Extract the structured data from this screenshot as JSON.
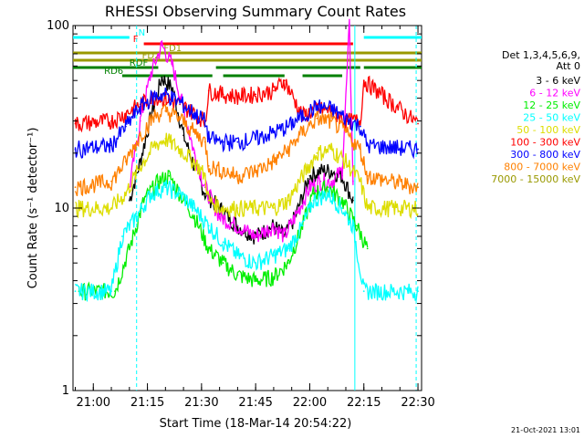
{
  "chart_data": {
    "type": "line",
    "title": "RHESSI Observing Summary Count Rates",
    "xlabel": "Start Time (18-Mar-14 20:54:22)",
    "ylabel": "Count Rate (s⁻¹ detector⁻¹)",
    "y_scale": "log",
    "ylim": [
      1,
      100
    ],
    "xlim": [
      "20:54:22",
      "22:31:00"
    ],
    "x_ticks": [
      "21:00",
      "21:15",
      "21:30",
      "21:45",
      "22:00",
      "22:15",
      "22:30"
    ],
    "y_ticks": [
      "1",
      "10",
      "100"
    ],
    "grid": false,
    "legend_position": "right",
    "legend_header": [
      "Det 1,3,4,5,6,9,",
      "Att 0"
    ],
    "footer_date": "21-Oct-2021 13:01",
    "colors": {
      "3 - 6 keV": "#000000",
      "6 - 12 keV": "#ff00ff",
      "12 - 25 keV": "#00ee00",
      "25 - 50 keV": "#00ffff",
      "50 - 100 keV": "#dddd00",
      "100 - 300 keV": "#ff0000",
      "300 - 800 keV": "#0000ff",
      "800 - 7000 keV": "#ff8000",
      "7000 - 15000 keV": "#999900"
    },
    "series": [
      {
        "name": "3 - 6 keV",
        "x": [
          "21:10",
          "21:13",
          "21:16",
          "21:19",
          "21:22",
          "21:25",
          "21:28",
          "21:31",
          "21:35",
          "21:40",
          "21:45",
          "21:50",
          "21:53",
          "21:56",
          "22:00",
          "22:03",
          "22:06",
          "22:09",
          "22:12"
        ],
        "y": [
          11,
          18,
          32,
          52,
          45,
          25,
          17,
          12,
          10,
          8,
          7,
          8,
          7,
          9,
          15,
          16,
          16,
          15,
          11
        ]
      },
      {
        "name": "6 - 12 keV",
        "x": [
          "21:10",
          "21:13",
          "21:16",
          "21:19",
          "21:22",
          "21:25",
          "21:28",
          "21:31",
          "21:35",
          "21:40",
          "21:45",
          "21:50",
          "21:53",
          "21:56",
          "22:00",
          "22:03",
          "22:06",
          "22:09",
          "22:11",
          "22:12"
        ],
        "y": [
          13,
          30,
          55,
          78,
          60,
          35,
          20,
          13,
          9,
          8,
          7,
          8,
          7,
          9,
          13,
          14,
          14,
          16,
          100,
          14
        ]
      },
      {
        "name": "12 - 25 keV",
        "x": [
          "20:56",
          "21:06",
          "21:10",
          "21:14",
          "21:18",
          "21:21",
          "21:24",
          "21:28",
          "21:32",
          "21:36",
          "21:40",
          "21:45",
          "21:50",
          "21:54",
          "21:58",
          "22:01",
          "22:05",
          "22:09",
          "22:13",
          "22:16"
        ],
        "y": [
          3.5,
          3.5,
          6,
          11,
          14,
          15,
          12,
          9,
          6,
          5,
          4.3,
          4,
          4.2,
          5,
          8,
          12,
          13,
          11,
          8,
          6
        ]
      },
      {
        "name": "25 - 50 keV",
        "x": [
          "20:55",
          "21:05",
          "21:08",
          "21:12",
          "21:16",
          "21:20",
          "21:24",
          "21:28",
          "21:32",
          "21:36",
          "21:40",
          "21:45",
          "21:50",
          "21:54",
          "21:58",
          "22:01",
          "22:05",
          "22:09",
          "22:12",
          "22:15",
          "22:18",
          "22:30"
        ],
        "y": [
          3.5,
          3.5,
          7,
          9,
          12,
          13,
          12,
          10,
          8,
          6.5,
          5.5,
          5,
          5.5,
          6,
          8,
          11,
          12,
          10,
          8,
          3.5,
          3.5,
          3.5
        ]
      },
      {
        "name": "50 - 100 keV",
        "x": [
          "20:55",
          "21:05",
          "21:09",
          "21:13",
          "21:17",
          "21:20",
          "21:24",
          "21:28",
          "21:31",
          "21:32",
          "21:36",
          "21:40",
          "21:45",
          "21:50",
          "21:54",
          "21:58",
          "22:02",
          "22:06",
          "22:10",
          "22:14",
          "22:16",
          "22:30"
        ],
        "y": [
          10,
          10,
          12,
          17,
          22,
          24,
          21,
          18,
          15,
          11,
          10,
          10,
          10,
          10,
          11,
          15,
          20,
          21,
          18,
          14,
          10,
          10
        ]
      },
      {
        "name": "100 - 300 keV",
        "x": [
          "20:55",
          "21:05",
          "21:09",
          "21:13",
          "21:17",
          "21:20",
          "21:24",
          "21:28",
          "21:31",
          "21:32",
          "21:36",
          "21:40",
          "21:45",
          "21:50",
          "21:53",
          "21:58",
          "22:02",
          "22:06",
          "22:10",
          "22:14",
          "22:15",
          "22:30"
        ],
        "y": [
          29,
          30,
          33,
          37,
          41,
          40,
          37,
          33,
          30,
          44,
          42,
          41,
          42,
          44,
          50,
          32,
          35,
          34,
          30,
          30,
          50,
          29
        ]
      },
      {
        "name": "300 - 800 keV",
        "x": [
          "20:55",
          "21:05",
          "21:09",
          "21:13",
          "21:17",
          "21:20",
          "21:24",
          "21:28",
          "21:31",
          "21:32",
          "21:36",
          "21:40",
          "21:45",
          "21:50",
          "21:54",
          "21:58",
          "22:02",
          "22:06",
          "22:10",
          "22:14",
          "22:16",
          "22:30"
        ],
        "y": [
          21,
          22,
          28,
          36,
          41,
          42,
          38,
          33,
          30,
          24,
          23,
          23,
          24,
          26,
          28,
          32,
          36,
          35,
          31,
          28,
          22,
          21
        ]
      },
      {
        "name": "800 - 7000 keV",
        "x": [
          "20:55",
          "21:05",
          "21:09",
          "21:13",
          "21:17",
          "21:20",
          "21:24",
          "21:28",
          "21:31",
          "21:32",
          "21:36",
          "21:40",
          "21:45",
          "21:50",
          "21:54",
          "21:58",
          "22:02",
          "22:06",
          "22:10",
          "22:14",
          "22:16",
          "22:30"
        ],
        "y": [
          13,
          14,
          18,
          25,
          32,
          34,
          31,
          26,
          23,
          17,
          16,
          15,
          16,
          18,
          21,
          26,
          31,
          30,
          26,
          21,
          15,
          13
        ]
      }
    ],
    "bar_annotations": [
      {
        "label": "N",
        "color": "#00ffff",
        "spans": [
          [
            "20:54:22",
            "21:10:00"
          ],
          [
            "22:15:00",
            "22:31:00"
          ]
        ]
      },
      {
        "label": "F",
        "color": "#ff0000",
        "spans": [
          [
            "21:14:00",
            "22:12:00"
          ]
        ]
      },
      {
        "label": "FD1",
        "color": "#999900",
        "spans": [
          [
            "20:54:22",
            "22:31:00"
          ]
        ]
      },
      {
        "label": "FD2",
        "color": "#999900",
        "spans": [
          [
            "20:54:22",
            "21:59:00"
          ],
          [
            "21:59:00",
            "22:31:00"
          ]
        ]
      },
      {
        "label": "RDF",
        "color": "#008000",
        "spans": [
          [
            "20:54:22",
            "21:18:00"
          ],
          [
            "21:34:00",
            "22:14:00"
          ],
          [
            "22:15:00",
            "22:31:00"
          ]
        ]
      },
      {
        "label": "RD6",
        "color": "#008000",
        "spans": [
          [
            "21:08:00",
            "21:33:00"
          ],
          [
            "21:36:00",
            "21:53:00"
          ],
          [
            "21:58:00",
            "22:09:00"
          ]
        ]
      }
    ],
    "vertical_markers": [
      {
        "x": "21:12:00",
        "style": "dashed",
        "color": "#00ffff"
      },
      {
        "x": "22:12:30",
        "style": "solid",
        "color": "#00ffff"
      },
      {
        "x": "22:29:30",
        "style": "dashed",
        "color": "#00ffff"
      }
    ]
  }
}
